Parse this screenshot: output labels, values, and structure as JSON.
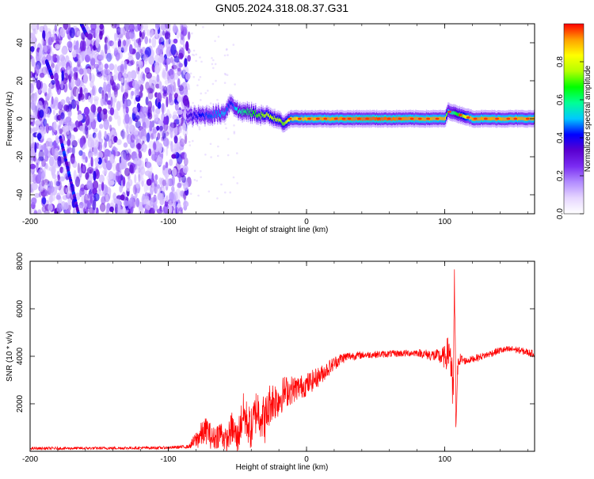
{
  "title": "GN05.2024.318.08.37.G31",
  "colors": {
    "snr_line": "#ff0000",
    "background": "#ffffff",
    "axis": "#000000",
    "colormap": [
      "#ffffff",
      "#e6d6ff",
      "#b28cff",
      "#7a2cf2",
      "#5a00d0",
      "#0000ff",
      "#00c8ff",
      "#00ff96",
      "#00ff00",
      "#b4ff00",
      "#ffff00",
      "#ffa000",
      "#ff0000"
    ]
  },
  "chart_data": [
    {
      "type": "heatmap",
      "xlabel": "Height of straight line (km)",
      "ylabel": "Frequency (Hz)",
      "xlim": [
        -200,
        165
      ],
      "ylim": [
        -50,
        50
      ],
      "xticks": [
        -200,
        -100,
        0,
        100
      ],
      "yticks": [
        -40,
        -20,
        0,
        20,
        40
      ],
      "colorbar": {
        "label": "Normalized spectral amplitude",
        "range": [
          0,
          1
        ],
        "ticks": [
          "0.0",
          "0.2",
          "0.4",
          "0.6",
          "0.8"
        ]
      },
      "noise_region_x": [
        -200,
        -85
      ],
      "carrier_ridge": [
        {
          "x": -87,
          "y": 1,
          "a": 0.35
        },
        {
          "x": -80,
          "y": 1.5,
          "a": 0.4
        },
        {
          "x": -70,
          "y": 2,
          "a": 0.45
        },
        {
          "x": -60,
          "y": 3,
          "a": 0.5
        },
        {
          "x": -55,
          "y": 9,
          "a": 0.4
        },
        {
          "x": -50,
          "y": 4,
          "a": 0.55
        },
        {
          "x": -40,
          "y": 3,
          "a": 0.65
        },
        {
          "x": -30,
          "y": 1.5,
          "a": 0.75
        },
        {
          "x": -20,
          "y": 0,
          "a": 0.75
        },
        {
          "x": -17,
          "y": -3,
          "a": 0.7
        },
        {
          "x": -12,
          "y": 0,
          "a": 0.85
        },
        {
          "x": 0,
          "y": 0,
          "a": 0.9
        },
        {
          "x": 50,
          "y": 0,
          "a": 0.95
        },
        {
          "x": 100,
          "y": 0,
          "a": 0.9
        },
        {
          "x": 102,
          "y": 4,
          "a": 0.5
        },
        {
          "x": 120,
          "y": 0,
          "a": 0.92
        },
        {
          "x": 165,
          "y": 0,
          "a": 0.9
        }
      ],
      "streaks": [
        {
          "x": [
            -178,
            -165
          ],
          "y": [
            -10,
            -50
          ]
        },
        {
          "x": [
            -188,
            -184
          ],
          "y": [
            30,
            22
          ]
        },
        {
          "x": [
            -163,
            -159
          ],
          "y": [
            50,
            44
          ]
        }
      ]
    },
    {
      "type": "line",
      "xlabel": "Height of straight line (km)",
      "ylabel": "SNR (10 * v/v)",
      "xlim": [
        -200,
        165
      ],
      "ylim": [
        0,
        8000
      ],
      "xticks": [
        -200,
        -100,
        0,
        100
      ],
      "yticks": [
        2000,
        4000,
        6000,
        8000
      ],
      "series": [
        {
          "x": [
            -200,
            -150,
            -100,
            -85,
            -78,
            -72,
            -68,
            -62,
            -58,
            -54,
            -50,
            -46,
            -40,
            -36,
            -30,
            -26,
            -20,
            -16,
            -10,
            -5,
            0,
            10,
            20,
            25,
            30,
            40,
            60,
            80,
            95,
            100,
            104,
            106,
            107,
            108,
            110,
            115,
            130,
            140,
            150,
            165
          ],
          "y": [
            120,
            130,
            150,
            200,
            600,
            900,
            500,
            800,
            400,
            1000,
            500,
            1600,
            900,
            1800,
            1300,
            2100,
            2200,
            2500,
            2600,
            2700,
            2800,
            3200,
            3700,
            3900,
            4000,
            4050,
            4100,
            4150,
            4000,
            3950,
            4300,
            1800,
            7000,
            1500,
            3900,
            3800,
            4050,
            4250,
            4300,
            4100
          ],
          "noise": [
            60,
            60,
            60,
            80,
            500,
            600,
            500,
            600,
            500,
            700,
            700,
            900,
            900,
            1000,
            1000,
            900,
            800,
            700,
            600,
            500,
            500,
            400,
            300,
            250,
            200,
            150,
            150,
            150,
            300,
            500,
            900,
            1400,
            1300,
            1400,
            300,
            150,
            150,
            150,
            150,
            150
          ]
        }
      ]
    }
  ]
}
